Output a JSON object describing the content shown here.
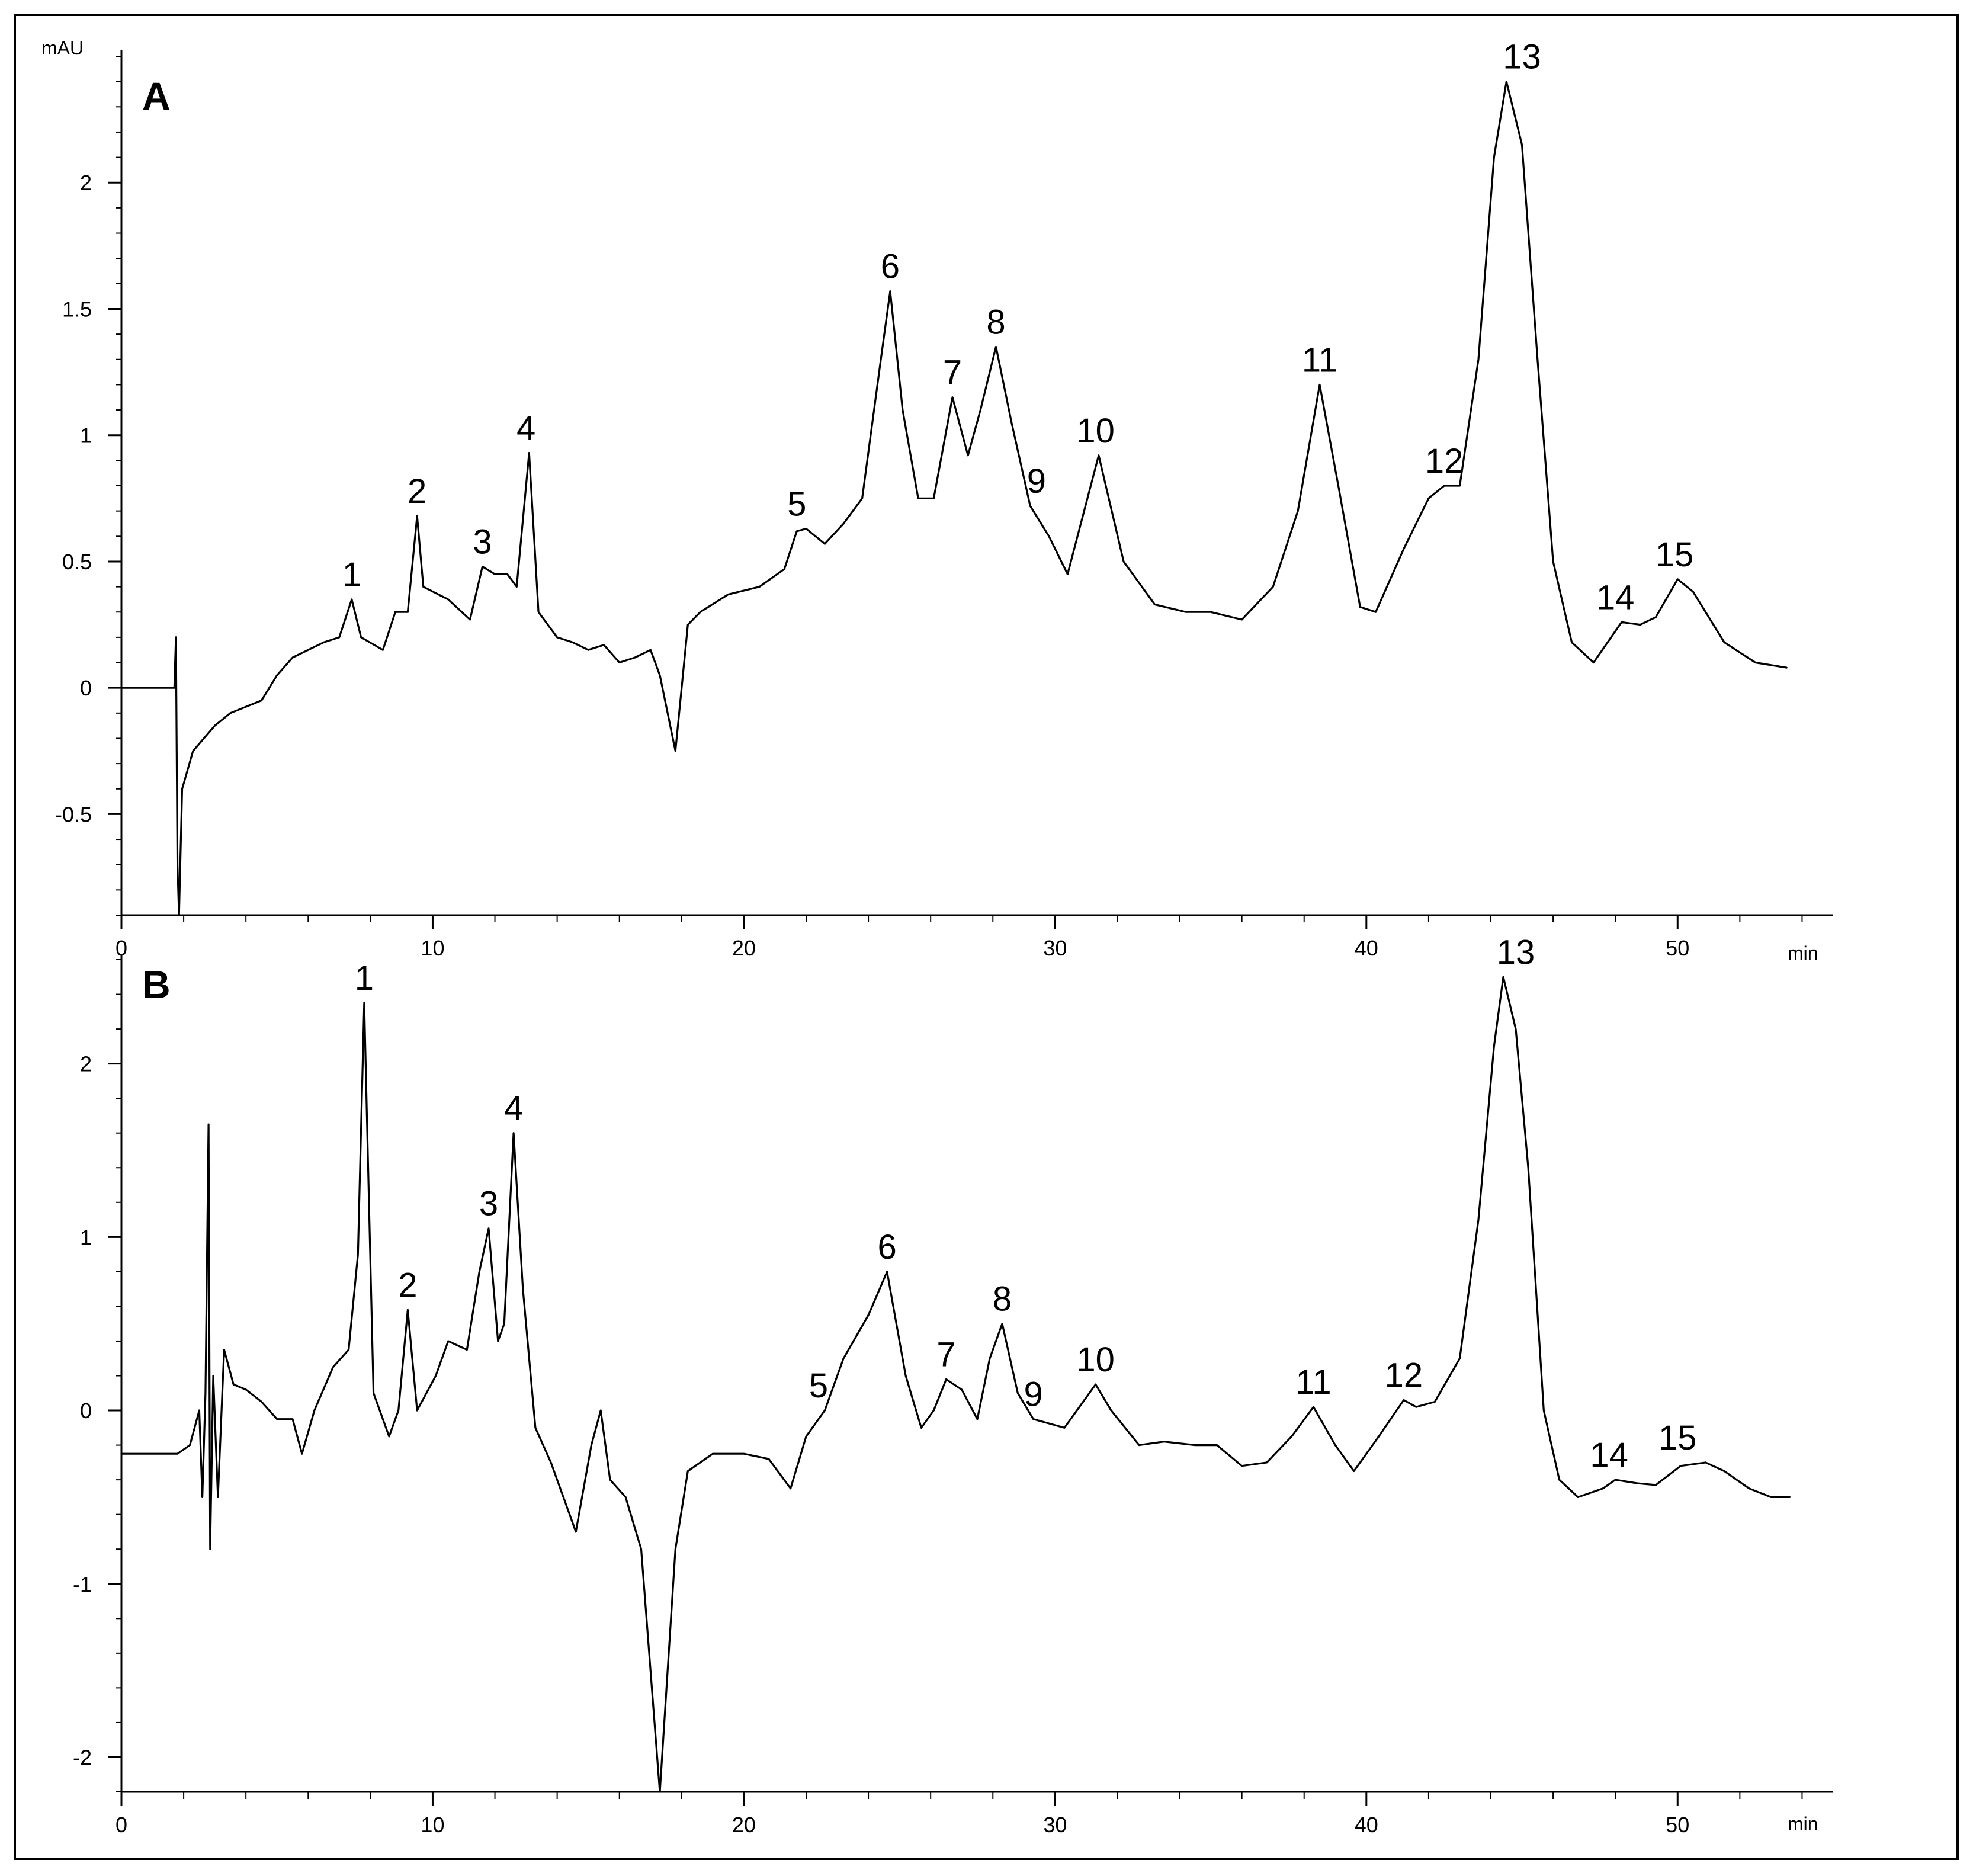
{
  "chart_data": [
    {
      "type": "line",
      "panel": "A",
      "ylabel": "mAU",
      "xlabel": "min",
      "xlim": [
        0,
        55
      ],
      "ylim": [
        -0.9,
        2.5
      ],
      "x_ticks": [
        0,
        10,
        20,
        30,
        40,
        50
      ],
      "y_ticks": [
        -0.5,
        0,
        0.5,
        1,
        1.5,
        2
      ],
      "y_tick_labels": [
        "-0.5",
        "0",
        "0.5",
        "1",
        "1.5",
        "2"
      ],
      "series": [
        {
          "points": [
            [
              0,
              0
            ],
            [
              1,
              0
            ],
            [
              1.7,
              0
            ],
            [
              1.75,
              0.2
            ],
            [
              1.8,
              -0.7
            ],
            [
              1.85,
              -0.9
            ],
            [
              1.95,
              -0.4
            ],
            [
              2.3,
              -0.25
            ],
            [
              3,
              -0.15
            ],
            [
              3.5,
              -0.1
            ],
            [
              4.5,
              -0.05
            ],
            [
              5,
              0.05
            ],
            [
              5.5,
              0.12
            ],
            [
              6,
              0.15
            ],
            [
              6.5,
              0.18
            ],
            [
              7,
              0.2
            ],
            [
              7.4,
              0.35
            ],
            [
              7.7,
              0.2
            ],
            [
              8.4,
              0.15
            ],
            [
              8.8,
              0.3
            ],
            [
              9.2,
              0.3
            ],
            [
              9.5,
              0.68
            ],
            [
              9.7,
              0.4
            ],
            [
              10.5,
              0.35
            ],
            [
              11.2,
              0.27
            ],
            [
              11.6,
              0.48
            ],
            [
              12,
              0.45
            ],
            [
              12.4,
              0.45
            ],
            [
              12.7,
              0.4
            ],
            [
              13.1,
              0.93
            ],
            [
              13.4,
              0.3
            ],
            [
              14,
              0.2
            ],
            [
              14.5,
              0.18
            ],
            [
              15,
              0.15
            ],
            [
              15.5,
              0.17
            ],
            [
              16,
              0.1
            ],
            [
              16.5,
              0.12
            ],
            [
              17,
              0.15
            ],
            [
              17.3,
              0.05
            ],
            [
              17.8,
              -0.25
            ],
            [
              18.2,
              0.25
            ],
            [
              18.6,
              0.3
            ],
            [
              19.5,
              0.37
            ],
            [
              20.5,
              0.4
            ],
            [
              21.3,
              0.47
            ],
            [
              21.7,
              0.62
            ],
            [
              22,
              0.63
            ],
            [
              22.6,
              0.57
            ],
            [
              23.2,
              0.65
            ],
            [
              23.8,
              0.75
            ],
            [
              24.4,
              1.3
            ],
            [
              24.7,
              1.57
            ],
            [
              25.1,
              1.1
            ],
            [
              25.6,
              0.75
            ],
            [
              26.1,
              0.75
            ],
            [
              26.7,
              1.15
            ],
            [
              27.2,
              0.92
            ],
            [
              27.6,
              1.1
            ],
            [
              28.1,
              1.35
            ],
            [
              28.6,
              1.05
            ],
            [
              29.2,
              0.72
            ],
            [
              29.8,
              0.6
            ],
            [
              30.4,
              0.45
            ],
            [
              31.4,
              0.92
            ],
            [
              32.2,
              0.5
            ],
            [
              33.2,
              0.33
            ],
            [
              34.2,
              0.3
            ],
            [
              35,
              0.3
            ],
            [
              36,
              0.27
            ],
            [
              37,
              0.4
            ],
            [
              37.8,
              0.7
            ],
            [
              38.5,
              1.2
            ],
            [
              39.1,
              0.8
            ],
            [
              39.8,
              0.32
            ],
            [
              40.3,
              0.3
            ],
            [
              41.2,
              0.55
            ],
            [
              42,
              0.75
            ],
            [
              42.5,
              0.8
            ],
            [
              43,
              0.8
            ],
            [
              43.6,
              1.3
            ],
            [
              44.1,
              2.1
            ],
            [
              44.5,
              2.4
            ],
            [
              45,
              2.15
            ],
            [
              45.5,
              1.3
            ],
            [
              46,
              0.5
            ],
            [
              46.6,
              0.18
            ],
            [
              47.3,
              0.1
            ],
            [
              48.2,
              0.26
            ],
            [
              48.8,
              0.25
            ],
            [
              49.3,
              0.28
            ],
            [
              50,
              0.43
            ],
            [
              50.5,
              0.38
            ],
            [
              51.5,
              0.18
            ],
            [
              52.5,
              0.1
            ],
            [
              53.5,
              0.08
            ]
          ]
        }
      ],
      "peak_labels": [
        {
          "label": "1",
          "x": 7.4,
          "y": 0.35
        },
        {
          "label": "2",
          "x": 9.5,
          "y": 0.68
        },
        {
          "label": "3",
          "x": 11.6,
          "y": 0.48
        },
        {
          "label": "4",
          "x": 13.0,
          "y": 0.93
        },
        {
          "label": "5",
          "x": 21.7,
          "y": 0.63
        },
        {
          "label": "6",
          "x": 24.7,
          "y": 1.57
        },
        {
          "label": "7",
          "x": 26.7,
          "y": 1.15
        },
        {
          "label": "8",
          "x": 28.1,
          "y": 1.35
        },
        {
          "label": "9",
          "x": 29.4,
          "y": 0.72
        },
        {
          "label": "10",
          "x": 31.3,
          "y": 0.92
        },
        {
          "label": "11",
          "x": 38.5,
          "y": 1.2
        },
        {
          "label": "12",
          "x": 42.5,
          "y": 0.8
        },
        {
          "label": "13",
          "x": 45.0,
          "y": 2.4
        },
        {
          "label": "14",
          "x": 48.0,
          "y": 0.26
        },
        {
          "label": "15",
          "x": 49.9,
          "y": 0.43
        }
      ]
    },
    {
      "type": "line",
      "panel": "B",
      "ylabel": "",
      "xlabel": "min",
      "xlim": [
        0,
        55
      ],
      "ylim": [
        -2.2,
        2.6
      ],
      "x_ticks": [
        0,
        10,
        20,
        30,
        40,
        50
      ],
      "y_ticks": [
        -2,
        -1,
        0,
        1,
        2
      ],
      "y_tick_labels": [
        "-2",
        "-1",
        "0",
        "1",
        "2"
      ],
      "series": [
        {
          "points": [
            [
              0,
              -0.25
            ],
            [
              1,
              -0.25
            ],
            [
              1.8,
              -0.25
            ],
            [
              2.2,
              -0.2
            ],
            [
              2.5,
              0
            ],
            [
              2.6,
              -0.5
            ],
            [
              2.7,
              0.1
            ],
            [
              2.8,
              1.65
            ],
            [
              2.85,
              -0.8
            ],
            [
              2.95,
              0.2
            ],
            [
              3.1,
              -0.5
            ],
            [
              3.3,
              0.35
            ],
            [
              3.6,
              0.15
            ],
            [
              4,
              0.12
            ],
            [
              4.5,
              0.05
            ],
            [
              5,
              -0.05
            ],
            [
              5.5,
              -0.05
            ],
            [
              5.8,
              -0.25
            ],
            [
              6.2,
              0
            ],
            [
              6.8,
              0.25
            ],
            [
              7.3,
              0.35
            ],
            [
              7.6,
              0.9
            ],
            [
              7.8,
              2.35
            ],
            [
              8.1,
              0.1
            ],
            [
              8.6,
              -0.15
            ],
            [
              8.9,
              0
            ],
            [
              9.2,
              0.58
            ],
            [
              9.5,
              0
            ],
            [
              10.1,
              0.2
            ],
            [
              10.5,
              0.4
            ],
            [
              11.1,
              0.35
            ],
            [
              11.5,
              0.8
            ],
            [
              11.8,
              1.05
            ],
            [
              12.1,
              0.4
            ],
            [
              12.3,
              0.5
            ],
            [
              12.6,
              1.6
            ],
            [
              12.9,
              0.7
            ],
            [
              13.3,
              -0.1
            ],
            [
              13.8,
              -0.3
            ],
            [
              14.6,
              -0.7
            ],
            [
              15.1,
              -0.2
            ],
            [
              15.4,
              0
            ],
            [
              15.7,
              -0.4
            ],
            [
              16.2,
              -0.5
            ],
            [
              16.7,
              -0.8
            ],
            [
              17.3,
              -2.2
            ],
            [
              17.8,
              -0.8
            ],
            [
              18.2,
              -0.35
            ],
            [
              19,
              -0.25
            ],
            [
              20,
              -0.25
            ],
            [
              20.8,
              -0.28
            ],
            [
              21.5,
              -0.45
            ],
            [
              22,
              -0.15
            ],
            [
              22.6,
              0
            ],
            [
              23.2,
              0.3
            ],
            [
              24,
              0.55
            ],
            [
              24.6,
              0.8
            ],
            [
              25.2,
              0.2
            ],
            [
              25.7,
              -0.1
            ],
            [
              26.1,
              0
            ],
            [
              26.5,
              0.18
            ],
            [
              27,
              0.12
            ],
            [
              27.5,
              -0.05
            ],
            [
              27.9,
              0.3
            ],
            [
              28.3,
              0.5
            ],
            [
              28.8,
              0.1
            ],
            [
              29.3,
              -0.05
            ],
            [
              30.3,
              -0.1
            ],
            [
              31.3,
              0.15
            ],
            [
              31.8,
              0
            ],
            [
              32.7,
              -0.2
            ],
            [
              33.5,
              -0.18
            ],
            [
              34.5,
              -0.2
            ],
            [
              35.2,
              -0.2
            ],
            [
              36,
              -0.32
            ],
            [
              36.8,
              -0.3
            ],
            [
              37.6,
              -0.15
            ],
            [
              38.3,
              0.02
            ],
            [
              39,
              -0.2
            ],
            [
              39.6,
              -0.35
            ],
            [
              40.4,
              -0.15
            ],
            [
              41.2,
              0.06
            ],
            [
              41.6,
              0.02
            ],
            [
              42.2,
              0.05
            ],
            [
              43,
              0.3
            ],
            [
              43.6,
              1.1
            ],
            [
              44.1,
              2.1
            ],
            [
              44.4,
              2.5
            ],
            [
              44.8,
              2.2
            ],
            [
              45.2,
              1.4
            ],
            [
              45.7,
              0
            ],
            [
              46.2,
              -0.4
            ],
            [
              46.8,
              -0.5
            ],
            [
              47.6,
              -0.45
            ],
            [
              48,
              -0.4
            ],
            [
              48.7,
              -0.42
            ],
            [
              49.3,
              -0.43
            ],
            [
              50.1,
              -0.32
            ],
            [
              50.9,
              -0.3
            ],
            [
              51.5,
              -0.35
            ],
            [
              52.3,
              -0.45
            ],
            [
              53,
              -0.5
            ],
            [
              53.6,
              -0.5
            ]
          ]
        }
      ],
      "peak_labels": [
        {
          "label": "1",
          "x": 7.8,
          "y": 2.35
        },
        {
          "label": "2",
          "x": 9.2,
          "y": 0.58
        },
        {
          "label": "3",
          "x": 11.8,
          "y": 1.05
        },
        {
          "label": "4",
          "x": 12.6,
          "y": 1.6
        },
        {
          "label": "5",
          "x": 22.4,
          "y": 0
        },
        {
          "label": "6",
          "x": 24.6,
          "y": 0.8
        },
        {
          "label": "7",
          "x": 26.5,
          "y": 0.18
        },
        {
          "label": "8",
          "x": 28.3,
          "y": 0.5
        },
        {
          "label": "9",
          "x": 29.3,
          "y": -0.05
        },
        {
          "label": "10",
          "x": 31.3,
          "y": 0.15
        },
        {
          "label": "11",
          "x": 38.3,
          "y": 0.02
        },
        {
          "label": "12",
          "x": 41.2,
          "y": 0.06
        },
        {
          "label": "13",
          "x": 44.8,
          "y": 2.5
        },
        {
          "label": "14",
          "x": 47.8,
          "y": -0.4
        },
        {
          "label": "15",
          "x": 50.0,
          "y": -0.3
        }
      ]
    }
  ]
}
